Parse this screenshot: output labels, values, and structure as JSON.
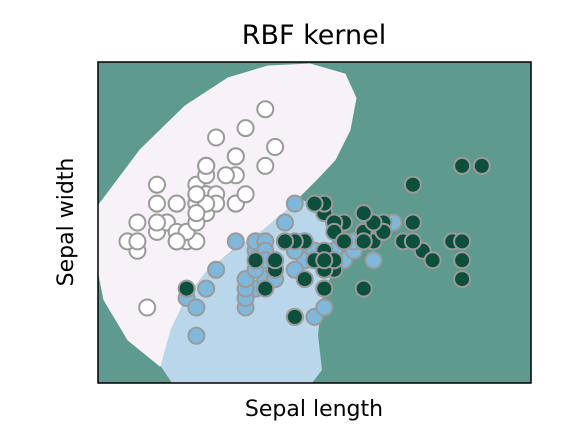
{
  "chart_data": {
    "type": "scatter",
    "title": "RBF kernel",
    "xlabel": "Sepal length",
    "ylabel": "Sepal width",
    "ticks_shown": false,
    "xlim": [
      4.0,
      8.4
    ],
    "ylim": [
      1.5,
      4.9
    ],
    "region_colors": {
      "setosa": "#f7f1f8",
      "versicolor": "#b9d6ea",
      "virginica": "#5e9a8d"
    },
    "series": [
      {
        "color": "#ffffff",
        "edge_color": "#9a9a9a",
        "points": [
          [
            5.1,
            3.5
          ],
          [
            4.9,
            3.0
          ],
          [
            4.7,
            3.2
          ],
          [
            4.6,
            3.1
          ],
          [
            5.0,
            3.6
          ],
          [
            5.4,
            3.9
          ],
          [
            4.6,
            3.4
          ],
          [
            5.0,
            3.4
          ],
          [
            4.4,
            2.9
          ],
          [
            4.9,
            3.1
          ],
          [
            5.4,
            3.7
          ],
          [
            4.8,
            3.4
          ],
          [
            4.8,
            3.0
          ],
          [
            4.3,
            3.0
          ],
          [
            5.8,
            4.0
          ],
          [
            5.7,
            4.4
          ],
          [
            5.4,
            3.9
          ],
          [
            5.1,
            3.5
          ],
          [
            5.7,
            3.8
          ],
          [
            5.1,
            3.8
          ],
          [
            5.4,
            3.4
          ],
          [
            5.1,
            3.7
          ],
          [
            4.6,
            3.6
          ],
          [
            5.1,
            3.3
          ],
          [
            4.8,
            3.4
          ],
          [
            5.0,
            3.0
          ],
          [
            5.0,
            3.4
          ],
          [
            5.2,
            3.5
          ],
          [
            5.2,
            3.4
          ],
          [
            4.7,
            3.2
          ],
          [
            4.8,
            3.1
          ],
          [
            5.4,
            3.4
          ],
          [
            5.2,
            4.1
          ],
          [
            5.5,
            4.2
          ],
          [
            4.9,
            3.1
          ],
          [
            5.0,
            3.2
          ],
          [
            5.5,
            3.5
          ],
          [
            4.4,
            3.0
          ],
          [
            5.1,
            3.4
          ],
          [
            5.0,
            3.5
          ],
          [
            4.5,
            2.3
          ],
          [
            4.4,
            3.2
          ],
          [
            5.0,
            3.5
          ],
          [
            5.1,
            3.8
          ],
          [
            4.8,
            3.0
          ],
          [
            5.1,
            3.8
          ],
          [
            4.6,
            3.2
          ],
          [
            5.3,
            3.7
          ],
          [
            5.0,
            3.3
          ]
        ]
      },
      {
        "color": "#7fb8da",
        "edge_color": "#9a9a9a",
        "points": [
          [
            7.0,
            3.2
          ],
          [
            6.4,
            3.2
          ],
          [
            6.9,
            3.1
          ],
          [
            5.5,
            2.3
          ],
          [
            6.5,
            2.8
          ],
          [
            5.7,
            2.8
          ],
          [
            6.3,
            3.3
          ],
          [
            4.9,
            2.4
          ],
          [
            6.6,
            2.9
          ],
          [
            5.2,
            2.7
          ],
          [
            5.0,
            2.0
          ],
          [
            5.9,
            3.0
          ],
          [
            6.0,
            2.2
          ],
          [
            6.1,
            2.9
          ],
          [
            5.6,
            2.9
          ],
          [
            6.7,
            3.1
          ],
          [
            5.6,
            3.0
          ],
          [
            5.8,
            2.7
          ],
          [
            6.2,
            2.2
          ],
          [
            5.6,
            2.5
          ],
          [
            5.9,
            3.2
          ],
          [
            6.1,
            2.8
          ],
          [
            6.3,
            2.5
          ],
          [
            6.1,
            2.8
          ],
          [
            6.4,
            2.9
          ],
          [
            6.6,
            3.0
          ],
          [
            6.8,
            2.8
          ],
          [
            6.7,
            3.0
          ],
          [
            6.0,
            2.9
          ],
          [
            5.7,
            2.6
          ],
          [
            5.5,
            2.4
          ],
          [
            5.5,
            2.4
          ],
          [
            5.8,
            2.7
          ],
          [
            6.0,
            2.7
          ],
          [
            5.4,
            3.0
          ],
          [
            6.0,
            3.4
          ],
          [
            6.7,
            3.1
          ],
          [
            6.3,
            2.3
          ],
          [
            5.6,
            3.0
          ],
          [
            5.5,
            2.5
          ],
          [
            5.5,
            2.6
          ],
          [
            6.1,
            3.0
          ],
          [
            5.8,
            2.6
          ],
          [
            5.0,
            2.3
          ],
          [
            5.6,
            2.7
          ],
          [
            5.7,
            3.0
          ],
          [
            5.7,
            2.9
          ],
          [
            6.2,
            2.9
          ],
          [
            5.1,
            2.5
          ],
          [
            5.7,
            2.8
          ]
        ]
      },
      {
        "color": "#0b4f3c",
        "edge_color": "#9a9a9a",
        "points": [
          [
            6.3,
            3.3
          ],
          [
            5.8,
            2.7
          ],
          [
            7.1,
            3.0
          ],
          [
            6.3,
            2.9
          ],
          [
            6.5,
            3.0
          ],
          [
            7.6,
            3.0
          ],
          [
            4.9,
            2.5
          ],
          [
            7.3,
            2.9
          ],
          [
            6.7,
            2.5
          ],
          [
            7.2,
            3.6
          ],
          [
            6.5,
            3.2
          ],
          [
            6.4,
            2.7
          ],
          [
            6.8,
            3.0
          ],
          [
            5.7,
            2.5
          ],
          [
            5.8,
            2.8
          ],
          [
            6.4,
            3.2
          ],
          [
            6.5,
            3.0
          ],
          [
            7.7,
            3.8
          ],
          [
            7.7,
            2.6
          ],
          [
            6.0,
            2.2
          ],
          [
            6.9,
            3.2
          ],
          [
            5.6,
            2.8
          ],
          [
            7.7,
            2.8
          ],
          [
            6.3,
            2.7
          ],
          [
            6.7,
            3.3
          ],
          [
            7.2,
            3.2
          ],
          [
            6.2,
            2.8
          ],
          [
            6.1,
            3.0
          ],
          [
            6.4,
            2.8
          ],
          [
            7.2,
            3.0
          ],
          [
            7.4,
            2.8
          ],
          [
            7.9,
            3.8
          ],
          [
            6.4,
            2.8
          ],
          [
            6.3,
            2.8
          ],
          [
            6.1,
            2.6
          ],
          [
            7.7,
            3.0
          ],
          [
            6.3,
            3.4
          ],
          [
            6.4,
            3.1
          ],
          [
            6.0,
            3.0
          ],
          [
            6.9,
            3.1
          ],
          [
            6.7,
            3.1
          ],
          [
            6.9,
            3.1
          ],
          [
            6.8,
            3.2
          ],
          [
            6.7,
            3.3
          ],
          [
            6.7,
            3.0
          ],
          [
            6.3,
            2.5
          ],
          [
            6.5,
            3.0
          ],
          [
            6.2,
            3.4
          ],
          [
            5.9,
            3.0
          ]
        ]
      }
    ]
  }
}
